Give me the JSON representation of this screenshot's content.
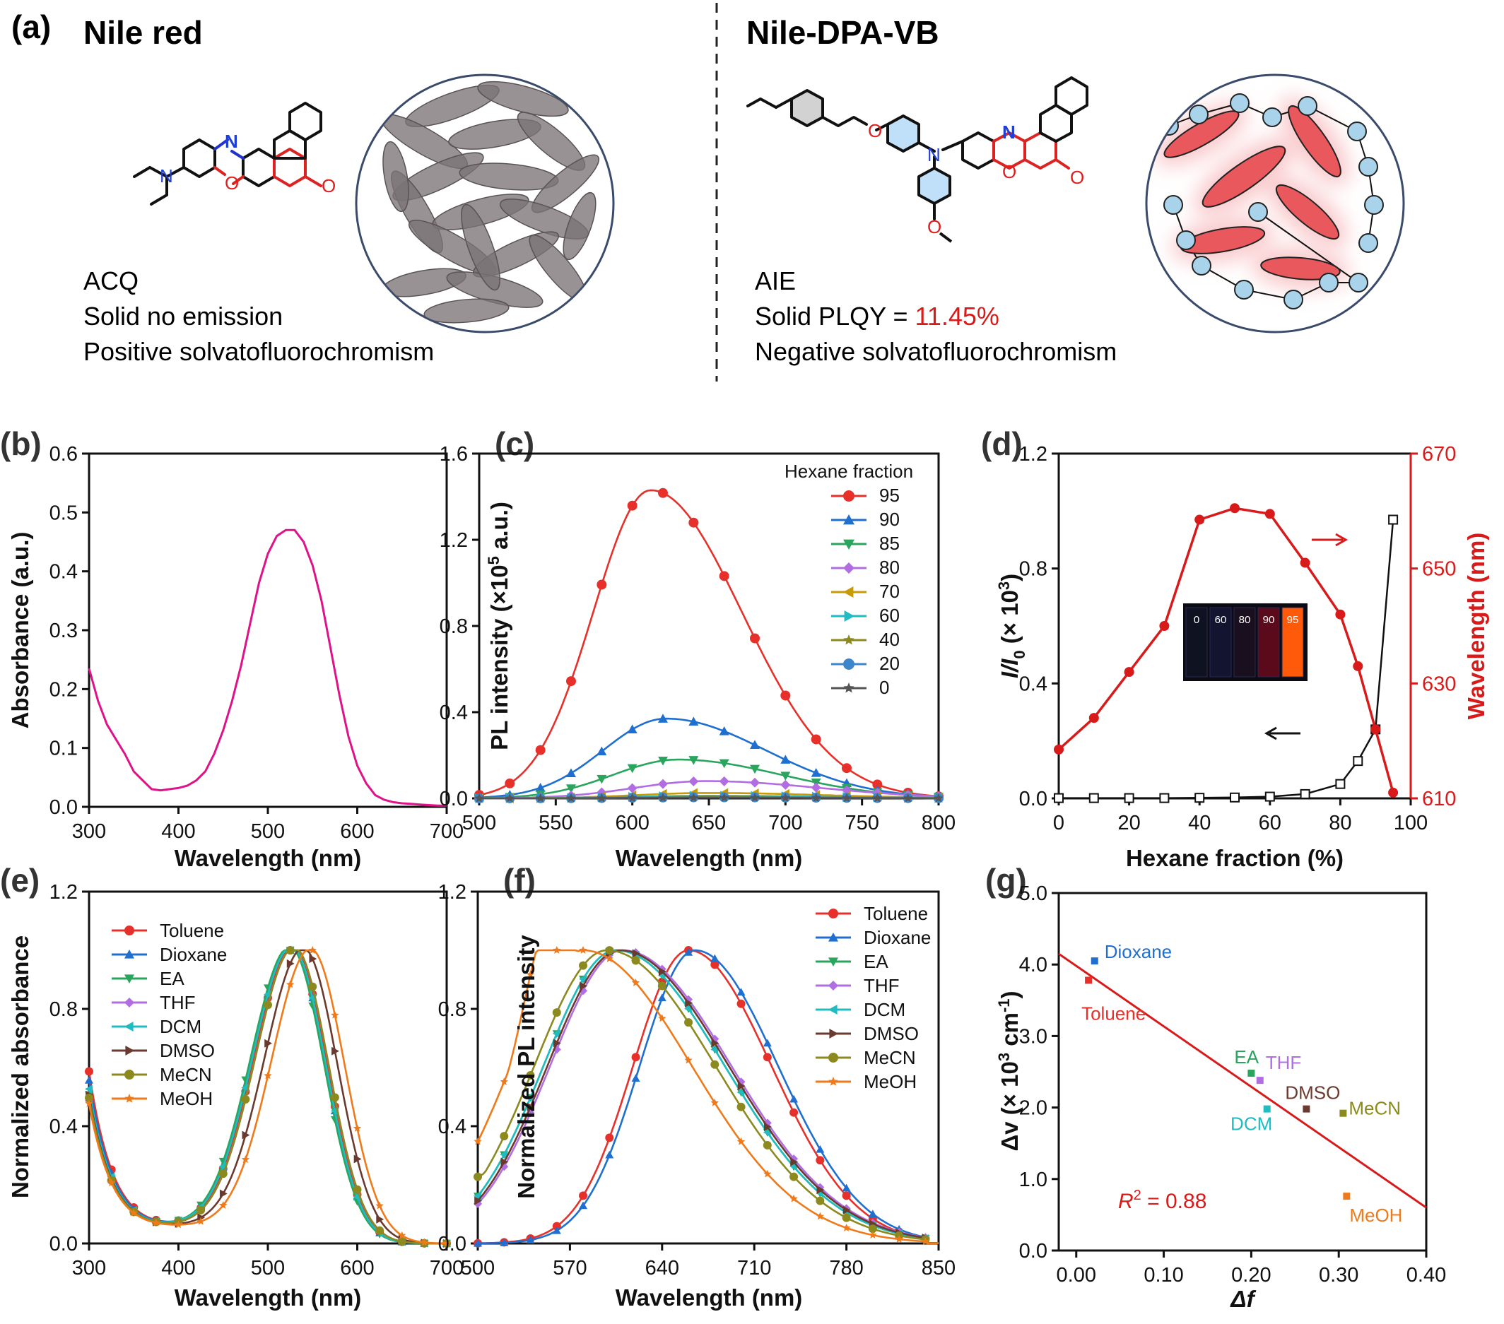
{
  "panel_a": {
    "label": "(a)",
    "left": {
      "title": "Nile red",
      "lines": [
        "ACQ",
        "Solid no emission",
        "Positive solvatofluorochromism"
      ],
      "atoms": {
        "n1": "N",
        "n2": "N",
        "o_ring": "O",
        "o_keto": "O"
      }
    },
    "right": {
      "title": "Nile-DPA-VB",
      "line1": "AIE",
      "plqy_prefix": "Solid PLQY = ",
      "plqy_value": "11.45%",
      "line3": "Negative solvatofluorochromism",
      "atoms": {
        "o_ether": "O",
        "n_amine": "N",
        "n_ring": "N",
        "o_ring": "O",
        "o_keto": "O",
        "o_methoxy": "O"
      }
    }
  },
  "colors": {
    "b_line": "#e0128a",
    "red_accent": "#d91a1a",
    "nitrogen": "#1f3fd6",
    "oxygen": "#e01e1e",
    "blue_ring": "#5aa8e8",
    "molecule_gray": "#7b7376",
    "sphere_blue": "#a9d3ea"
  },
  "panels": {
    "b": {
      "label": "(b)",
      "chart_data": {
        "type": "line",
        "xlabel": "Wavelength (nm)",
        "ylabel": "Absorbance (a.u.)",
        "xlim": [
          300,
          700
        ],
        "ylim": [
          0,
          0.6
        ],
        "xticks": [
          "300",
          "400",
          "500",
          "600",
          "700"
        ],
        "yticks": [
          "0.0",
          "0.1",
          "0.2",
          "0.3",
          "0.4",
          "0.5",
          "0.6"
        ],
        "series": [
          {
            "x": [
              300,
              310,
              320,
              330,
              340,
              350,
              360,
              370,
              380,
              390,
              400,
              410,
              420,
              430,
              440,
              450,
              460,
              470,
              480,
              490,
              500,
              510,
              520,
              530,
              540,
              550,
              560,
              570,
              580,
              590,
              600,
              610,
              620,
              630,
              640,
              650,
              660,
              670,
              680,
              690,
              700
            ],
            "values": [
              0.235,
              0.18,
              0.14,
              0.115,
              0.09,
              0.06,
              0.045,
              0.03,
              0.028,
              0.03,
              0.032,
              0.036,
              0.045,
              0.06,
              0.09,
              0.13,
              0.18,
              0.24,
              0.31,
              0.38,
              0.43,
              0.46,
              0.47,
              0.47,
              0.45,
              0.41,
              0.35,
              0.27,
              0.19,
              0.12,
              0.07,
              0.04,
              0.02,
              0.012,
              0.008,
              0.006,
              0.005,
              0.004,
              0.003,
              0.002,
              0.002
            ]
          }
        ]
      }
    },
    "c": {
      "label": "(c)",
      "chart_data": {
        "type": "line",
        "xlabel": "Wavelength (nm)",
        "ylabel_pre": "PL intensity (×10",
        "ylabel_sup": "5",
        "ylabel_post": " a.u.)",
        "xlim": [
          500,
          800
        ],
        "ylim": [
          0,
          1.6
        ],
        "xticks": [
          "500",
          "550",
          "600",
          "650",
          "700",
          "750",
          "800"
        ],
        "yticks": [
          "0.0",
          "0.4",
          "0.8",
          "1.2",
          "1.6"
        ],
        "legend_title": "Hexane fraction",
        "legend_position": "top-right",
        "series": [
          {
            "name": "95",
            "peak": 1.43,
            "center": 612,
            "width": 44
          },
          {
            "name": "90",
            "peak": 0.37,
            "center": 622,
            "width": 48
          },
          {
            "name": "85",
            "peak": 0.18,
            "center": 630,
            "width": 50
          },
          {
            "name": "80",
            "peak": 0.08,
            "center": 648,
            "width": 55
          },
          {
            "name": "70",
            "peak": 0.025,
            "center": 650,
            "width": 55
          },
          {
            "name": "60",
            "peak": 0.012,
            "center": 650,
            "width": 55
          },
          {
            "name": "40",
            "peak": 0.008,
            "center": 650,
            "width": 55
          },
          {
            "name": "20",
            "peak": 0.005,
            "center": 650,
            "width": 55
          },
          {
            "name": "0",
            "peak": 0.003,
            "center": 650,
            "width": 55
          }
        ],
        "series_colors": [
          "#e8302b",
          "#1f6fd1",
          "#2aa55e",
          "#b26de3",
          "#c79a06",
          "#1fbcc2",
          "#8c8a1e",
          "#3c86c9",
          "#555555"
        ],
        "series_markers": [
          "circle",
          "triangle-up",
          "triangle-down",
          "diamond",
          "triangle-left",
          "triangle-right",
          "star",
          "circle",
          "star"
        ]
      }
    },
    "d": {
      "label": "(d)",
      "chart_data": {
        "type": "line",
        "xlabel": "Hexane fraction (%)",
        "ylabel_left_pre": "I/I",
        "ylabel_left_sub": "0",
        "ylabel_left_post": " (× 10",
        "ylabel_left_sup": "3",
        "ylabel_left_close": ")",
        "ylabel_right": "Wavelength (nm)",
        "xlim": [
          0,
          100
        ],
        "ylim_left": [
          0,
          1.2
        ],
        "ylim_right": [
          610,
          670
        ],
        "xticks": [
          "0",
          "20",
          "40",
          "60",
          "80",
          "100"
        ],
        "yticks_left": [
          "0.0",
          "0.4",
          "0.8",
          "1.2"
        ],
        "yticks_right": [
          "610",
          "630",
          "650",
          "670"
        ],
        "series": [
          {
            "axis": "left",
            "x": [
              0,
              10,
              20,
              30,
              40,
              50,
              60,
              70,
              80,
              85,
              90,
              95
            ],
            "values": [
              0.001,
              0.001,
              0.001,
              0.001,
              0.002,
              0.003,
              0.006,
              0.015,
              0.05,
              0.13,
              0.24,
              0.97
            ]
          },
          {
            "axis": "right",
            "x": [
              0,
              10,
              20,
              30,
              40,
              50,
              60,
              70,
              80,
              85,
              90,
              95
            ],
            "values": [
              618.5,
              624,
              632,
              640,
              658.5,
              660.5,
              659.5,
              651,
              642,
              633,
              622,
              611
            ]
          }
        ],
        "inset_labels": [
          "0",
          "60",
          "80",
          "90",
          "95"
        ]
      }
    },
    "e": {
      "label": "(e)",
      "chart_data": {
        "type": "line",
        "xlabel": "Wavelength (nm)",
        "ylabel": "Normalized absorbance",
        "xlim": [
          300,
          700
        ],
        "ylim": [
          0,
          1.2
        ],
        "xticks": [
          "300",
          "400",
          "500",
          "600",
          "700"
        ],
        "yticks": [
          "0.0",
          "0.4",
          "0.8",
          "1.2"
        ],
        "legend_position": "top-left",
        "series": [
          {
            "name": "Toluene",
            "peak_x": 528,
            "start": 0.58
          },
          {
            "name": "Dioxane",
            "peak_x": 527,
            "start": 0.55
          },
          {
            "name": "EA",
            "peak_x": 525,
            "start": 0.5
          },
          {
            "name": "THF",
            "peak_x": 530,
            "start": 0.48
          },
          {
            "name": "DCM",
            "peak_x": 527,
            "start": 0.52
          },
          {
            "name": "DMSO",
            "peak_x": 540,
            "start": 0.5
          },
          {
            "name": "MeCN",
            "peak_x": 530,
            "start": 0.49
          },
          {
            "name": "MeOH",
            "peak_x": 548,
            "start": 0.47
          }
        ],
        "series_colors": [
          "#e8302b",
          "#1f6fd1",
          "#2aa55e",
          "#b26de3",
          "#1fbcc2",
          "#6b3a2e",
          "#8c8a1e",
          "#f07a1a"
        ],
        "series_markers": [
          "circle",
          "triangle-up",
          "triangle-down",
          "diamond",
          "triangle-left",
          "triangle-right",
          "circle",
          "star"
        ]
      }
    },
    "f": {
      "label": "(f)",
      "chart_data": {
        "type": "line",
        "xlabel": "Wavelength (nm)",
        "ylabel": "Normalized PL intensity",
        "xlim": [
          500,
          850
        ],
        "ylim": [
          0,
          1.2
        ],
        "xticks": [
          "500",
          "570",
          "640",
          "710",
          "780",
          "850"
        ],
        "yticks": [
          "0.0",
          "0.4",
          "0.8",
          "1.2"
        ],
        "legend_position": "top-right",
        "series": [
          {
            "name": "Toluene",
            "peak_x": 660
          },
          {
            "name": "Dioxane",
            "peak_x": 665
          },
          {
            "name": "EA",
            "peak_x": 605
          },
          {
            "name": "THF",
            "peak_x": 610
          },
          {
            "name": "DCM",
            "peak_x": 605
          },
          {
            "name": "DMSO",
            "peak_x": 608
          },
          {
            "name": "MeCN",
            "peak_x": 598
          },
          {
            "name": "MeOH",
            "peak_x": 580
          }
        ],
        "series_colors": [
          "#e8302b",
          "#1f6fd1",
          "#2aa55e",
          "#b26de3",
          "#1fbcc2",
          "#6b3a2e",
          "#8c8a1e",
          "#f07a1a"
        ],
        "series_markers": [
          "circle",
          "triangle-up",
          "triangle-down",
          "diamond",
          "triangle-left",
          "triangle-right",
          "circle",
          "star"
        ]
      }
    },
    "g": {
      "label": "(g)",
      "chart_data": {
        "type": "scatter",
        "xlabel": "Δf",
        "ylabel_pre": "Δv (× 10",
        "ylabel_sup": "3",
        "ylabel_post": " cm",
        "ylabel_sup2": "-1",
        "ylabel_close": ")",
        "xlim": [
          -0.02,
          0.4
        ],
        "ylim": [
          0,
          5
        ],
        "xticks": [
          "0.00",
          "0.10",
          "0.20",
          "0.30",
          "0.40"
        ],
        "yticks": [
          "0.0",
          "1.0",
          "2.0",
          "3.0",
          "4.0",
          "5.0"
        ],
        "points": [
          {
            "name": "Dioxane",
            "x": 0.021,
            "y": 4.05,
            "color": "#1f6fd1"
          },
          {
            "name": "Toluene",
            "x": 0.014,
            "y": 3.78,
            "color": "#e8302b"
          },
          {
            "name": "EA",
            "x": 0.2,
            "y": 2.48,
            "color": "#2aa55e"
          },
          {
            "name": "THF",
            "x": 0.21,
            "y": 2.38,
            "color": "#b26de3"
          },
          {
            "name": "DCM",
            "x": 0.218,
            "y": 1.98,
            "color": "#1fbcc2"
          },
          {
            "name": "DMSO",
            "x": 0.263,
            "y": 1.98,
            "color": "#6b3a2e"
          },
          {
            "name": "MeCN",
            "x": 0.305,
            "y": 1.92,
            "color": "#8c8a1e"
          },
          {
            "name": "MeOH",
            "x": 0.309,
            "y": 0.76,
            "color": "#f07a1a"
          }
        ],
        "fit": {
          "x": [
            -0.02,
            0.4
          ],
          "y": [
            4.15,
            0.6
          ]
        },
        "r2_pre": "R",
        "r2_sup": "2",
        "r2_post": " = 0.88"
      }
    }
  }
}
